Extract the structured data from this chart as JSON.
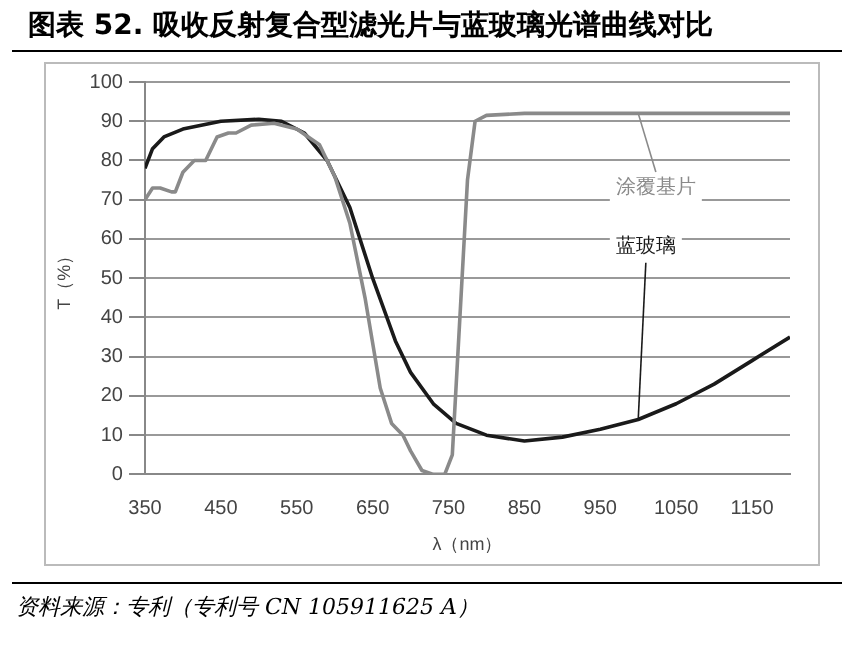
{
  "chart_data": {
    "type": "line",
    "title": "图表 52. 吸收反射复合型滤光片与蓝玻璃光谱曲线对比",
    "xlabel": "λ（nm）",
    "ylabel": "T（%）",
    "annotations": [
      "资料来源：专利（专利号 CN 105911625 A）"
    ],
    "xlim": [
      350,
      1200
    ],
    "xticks": [
      350,
      450,
      550,
      650,
      750,
      850,
      950,
      1050,
      1150
    ],
    "ylim": [
      0,
      100
    ],
    "yticks": [
      0,
      10,
      20,
      30,
      40,
      50,
      60,
      70,
      80,
      90,
      100
    ],
    "grid": "y",
    "legend": false,
    "marker": "none",
    "line_style": "solid",
    "series": [
      {
        "name": "涂覆基片",
        "color": "#8a8a8a",
        "x": [
          350,
          360,
          370,
          385,
          390,
          400,
          415,
          430,
          445,
          460,
          470,
          490,
          520,
          550,
          580,
          600,
          620,
          640,
          660,
          675,
          690,
          700,
          715,
          730,
          745,
          755,
          765,
          775,
          785,
          800,
          850,
          1000,
          1200
        ],
        "values": [
          70,
          73,
          73,
          72,
          72,
          77,
          80,
          80,
          86,
          87,
          87,
          89,
          89.5,
          88,
          84,
          76,
          64,
          45,
          22,
          13,
          10,
          6,
          1,
          0,
          0,
          5,
          40,
          75,
          90,
          91.5,
          92,
          92,
          92
        ]
      },
      {
        "name": "蓝玻璃",
        "color": "#1a1a1a",
        "x": [
          350,
          360,
          375,
          400,
          450,
          500,
          530,
          560,
          590,
          620,
          650,
          680,
          700,
          730,
          760,
          800,
          850,
          900,
          950,
          1000,
          1050,
          1100,
          1150,
          1200
        ],
        "values": [
          78,
          83,
          86,
          88,
          90,
          90.5,
          90,
          87,
          80,
          68,
          50,
          34,
          26,
          18,
          13,
          10,
          8.5,
          9.5,
          11.5,
          14,
          18,
          23,
          29,
          35
        ]
      }
    ]
  }
}
